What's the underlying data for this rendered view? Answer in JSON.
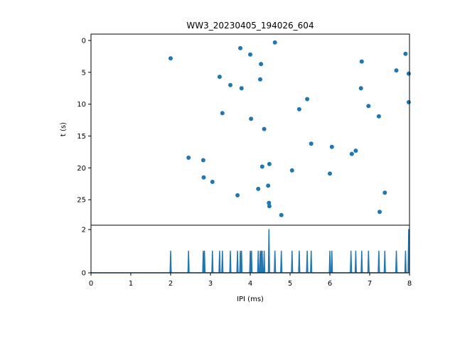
{
  "chart_data": [
    {
      "type": "scatter",
      "title": "WW3_20230405_194026_604",
      "xlabel": "",
      "ylabel": "t (s)",
      "xlim": [
        0,
        8
      ],
      "ylim": [
        29.0,
        -1.0
      ],
      "y_inverted": true,
      "yticks": [
        0,
        5,
        10,
        15,
        20,
        25
      ],
      "color": "#1f77b4",
      "points": [
        {
          "x": 2.0,
          "y": 2.8
        },
        {
          "x": 2.45,
          "y": 18.4
        },
        {
          "x": 2.82,
          "y": 18.8
        },
        {
          "x": 2.83,
          "y": 21.5
        },
        {
          "x": 3.05,
          "y": 22.2
        },
        {
          "x": 3.23,
          "y": 5.7
        },
        {
          "x": 3.3,
          "y": 11.4
        },
        {
          "x": 3.5,
          "y": 7.0
        },
        {
          "x": 3.68,
          "y": 24.3
        },
        {
          "x": 3.75,
          "y": 1.2
        },
        {
          "x": 3.78,
          "y": 7.5
        },
        {
          "x": 4.0,
          "y": 2.2
        },
        {
          "x": 4.02,
          "y": 12.3
        },
        {
          "x": 4.2,
          "y": 23.3
        },
        {
          "x": 4.25,
          "y": 6.1
        },
        {
          "x": 4.27,
          "y": 3.7
        },
        {
          "x": 4.3,
          "y": 19.8
        },
        {
          "x": 4.35,
          "y": 13.9
        },
        {
          "x": 4.45,
          "y": 22.8
        },
        {
          "x": 4.47,
          "y": 25.5
        },
        {
          "x": 4.48,
          "y": 26.0
        },
        {
          "x": 4.48,
          "y": 19.4
        },
        {
          "x": 4.62,
          "y": 0.3
        },
        {
          "x": 4.78,
          "y": 27.4
        },
        {
          "x": 5.05,
          "y": 20.4
        },
        {
          "x": 5.23,
          "y": 10.8
        },
        {
          "x": 5.43,
          "y": 9.2
        },
        {
          "x": 5.53,
          "y": 16.2
        },
        {
          "x": 6.0,
          "y": 20.9
        },
        {
          "x": 6.05,
          "y": 16.7
        },
        {
          "x": 6.55,
          "y": 17.8
        },
        {
          "x": 6.65,
          "y": 17.3
        },
        {
          "x": 6.78,
          "y": 7.5
        },
        {
          "x": 6.8,
          "y": 3.3
        },
        {
          "x": 6.97,
          "y": 10.3
        },
        {
          "x": 7.23,
          "y": 11.9
        },
        {
          "x": 7.25,
          "y": 26.9
        },
        {
          "x": 7.38,
          "y": 23.9
        },
        {
          "x": 7.67,
          "y": 4.7
        },
        {
          "x": 7.9,
          "y": 2.1
        },
        {
          "x": 7.98,
          "y": 5.2
        },
        {
          "x": 7.98,
          "y": 9.7
        }
      ]
    },
    {
      "type": "line",
      "xlabel": "IPI (ms)",
      "ylabel": "",
      "xlim": [
        0,
        8
      ],
      "ylim": [
        0,
        2.2
      ],
      "xticks": [
        0,
        1,
        2,
        3,
        4,
        5,
        6,
        7,
        8
      ],
      "yticks": [
        0,
        2
      ],
      "color": "#1f77b4",
      "spikes": [
        {
          "x": 2.0,
          "y": 1
        },
        {
          "x": 2.45,
          "y": 1
        },
        {
          "x": 2.82,
          "y": 1
        },
        {
          "x": 2.85,
          "y": 1
        },
        {
          "x": 3.05,
          "y": 1
        },
        {
          "x": 3.23,
          "y": 1
        },
        {
          "x": 3.3,
          "y": 1
        },
        {
          "x": 3.5,
          "y": 1
        },
        {
          "x": 3.68,
          "y": 1
        },
        {
          "x": 3.75,
          "y": 1
        },
        {
          "x": 3.78,
          "y": 1
        },
        {
          "x": 4.0,
          "y": 1
        },
        {
          "x": 4.03,
          "y": 1
        },
        {
          "x": 4.2,
          "y": 1
        },
        {
          "x": 4.25,
          "y": 1
        },
        {
          "x": 4.28,
          "y": 1
        },
        {
          "x": 4.3,
          "y": 1
        },
        {
          "x": 4.35,
          "y": 1
        },
        {
          "x": 4.47,
          "y": 2
        },
        {
          "x": 4.62,
          "y": 1
        },
        {
          "x": 4.78,
          "y": 1
        },
        {
          "x": 5.05,
          "y": 1
        },
        {
          "x": 5.23,
          "y": 1
        },
        {
          "x": 5.43,
          "y": 1
        },
        {
          "x": 5.53,
          "y": 1
        },
        {
          "x": 6.0,
          "y": 1
        },
        {
          "x": 6.05,
          "y": 1
        },
        {
          "x": 6.53,
          "y": 1
        },
        {
          "x": 6.65,
          "y": 1
        },
        {
          "x": 6.8,
          "y": 1
        },
        {
          "x": 6.97,
          "y": 1
        },
        {
          "x": 7.23,
          "y": 1
        },
        {
          "x": 7.38,
          "y": 1
        },
        {
          "x": 7.67,
          "y": 1
        },
        {
          "x": 7.9,
          "y": 1
        },
        {
          "x": 7.98,
          "y": 2
        }
      ]
    }
  ]
}
